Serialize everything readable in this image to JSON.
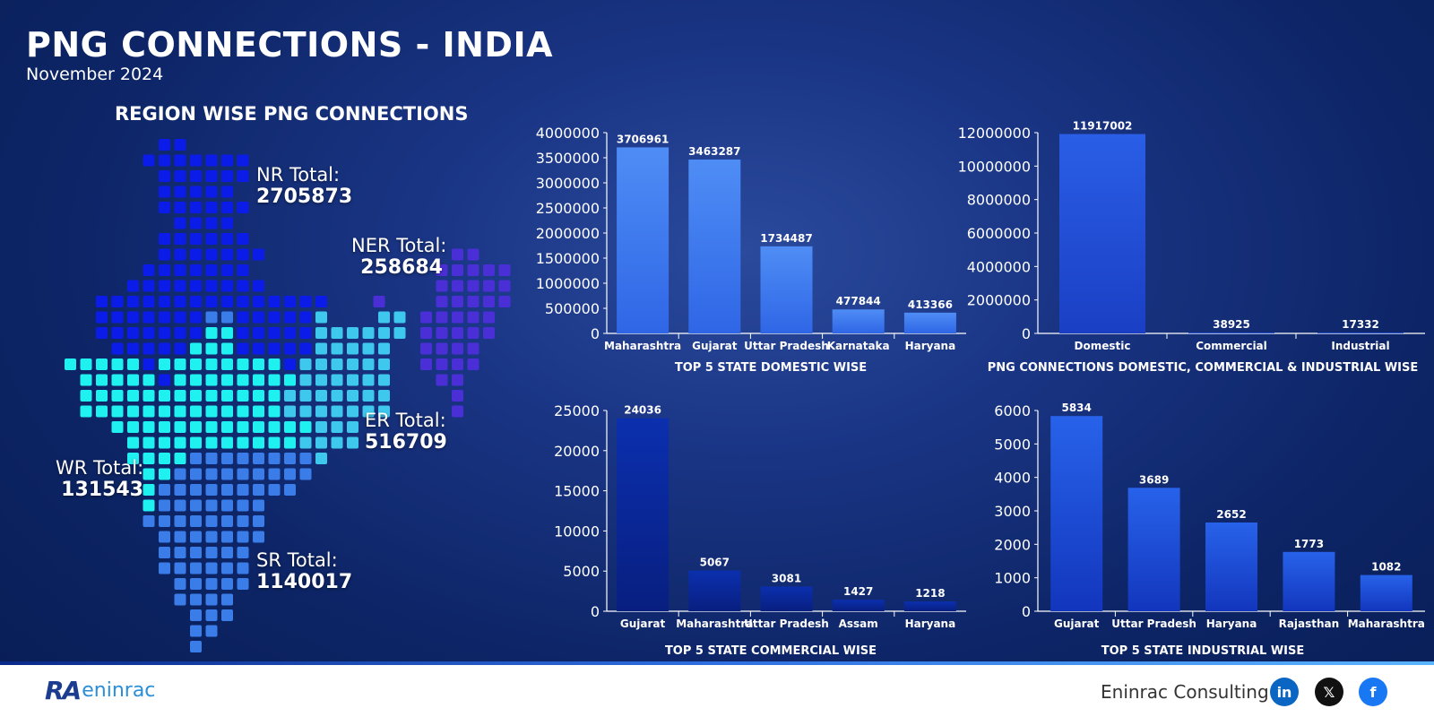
{
  "header": {
    "title": "PNG CONNECTIONS - INDIA",
    "subtitle": "November 2024",
    "region_title": "REGION WISE PNG CONNECTIONS"
  },
  "regions": {
    "nr": {
      "label": "NR Total:",
      "value": "2705873",
      "color": "#0c1ce8"
    },
    "ner": {
      "label": "NER Total:",
      "value": "258684",
      "color": "#4b2fd6"
    },
    "er": {
      "label": "ER Total:",
      "value": "516709",
      "color": "#3ec8ee"
    },
    "wr": {
      "label": "WR Total:",
      "value": "131543",
      "color": "#1ff1f0"
    },
    "sr": {
      "label": "SR Total:",
      "value": "1140017",
      "color": "#3a7de8"
    }
  },
  "chart_data": [
    {
      "id": "domestic",
      "type": "bar",
      "title": "TOP 5 STATE DOMESTIC WISE",
      "categories": [
        "Maharashtra",
        "Gujarat",
        "Uttar Pradesh",
        "Karnataka",
        "Haryana"
      ],
      "values": [
        3706961,
        3463287,
        1734487,
        477844,
        413366
      ],
      "ylim": [
        0,
        4000000
      ],
      "yticks": [
        0,
        500000,
        1000000,
        1500000,
        2000000,
        2500000,
        3000000,
        3500000,
        4000000
      ],
      "color": "#3b7cf0"
    },
    {
      "id": "segments",
      "type": "bar",
      "title": "PNG CONNECTIONS DOMESTIC, COMMERCIAL & INDUSTRIAL WISE",
      "categories": [
        "Domestic",
        "Commercial",
        "Industrial"
      ],
      "values": [
        11917002,
        38925,
        17332
      ],
      "ylim": [
        0,
        12000000
      ],
      "yticks": [
        0,
        2000000,
        4000000,
        6000000,
        8000000,
        10000000,
        12000000
      ],
      "color": "#1f4fd8"
    },
    {
      "id": "commercial",
      "type": "bar",
      "title": "TOP 5 STATE COMMERCIAL WISE",
      "categories": [
        "Gujarat",
        "Maharashtra",
        "Uttar Pradesh",
        "Assam",
        "Haryana"
      ],
      "values": [
        24036,
        5067,
        3081,
        1427,
        1218
      ],
      "ylim": [
        0,
        25000
      ],
      "yticks": [
        0,
        5000,
        10000,
        15000,
        20000,
        25000
      ],
      "color": "#0a2a9c"
    },
    {
      "id": "industrial",
      "type": "bar",
      "title": "TOP 5 STATE INDUSTRIAL WISE",
      "categories": [
        "Gujarat",
        "Uttar Pradesh",
        "Haryana",
        "Rajasthan",
        "Maharashtra"
      ],
      "values": [
        5834,
        3689,
        2652,
        1773,
        1082
      ],
      "ylim": [
        0,
        6000
      ],
      "yticks": [
        0,
        1000,
        2000,
        3000,
        4000,
        5000,
        6000
      ],
      "color": "#1a48d0"
    }
  ],
  "footer": {
    "logo_mark": "RA",
    "logo_word": "eninrac",
    "company": "Eninrac Consulting",
    "social": [
      {
        "name": "linkedin-icon",
        "glyph": "in",
        "color": "#0a66c2"
      },
      {
        "name": "x-icon",
        "glyph": "𝕏",
        "color": "#111111"
      },
      {
        "name": "facebook-icon",
        "glyph": "f",
        "color": "#1877f2"
      }
    ]
  }
}
